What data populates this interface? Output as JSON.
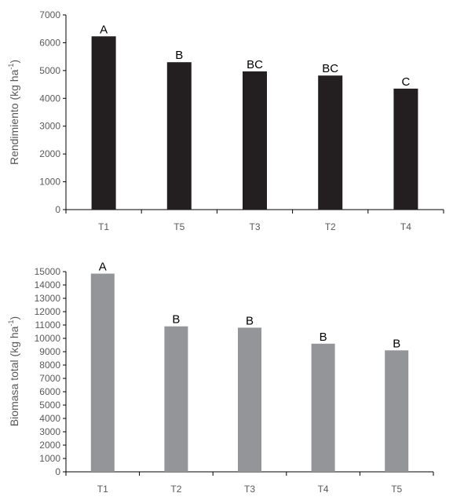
{
  "chart_data": [
    {
      "type": "bar",
      "title": "",
      "xlabel": "",
      "ylabel": "Rendimiento (kg ha",
      "ylabel_sup": "-1",
      "ylabel_end": ")",
      "categories": [
        "T1",
        "T5",
        "T3",
        "T2",
        "T4"
      ],
      "values": [
        6230,
        5300,
        4970,
        4820,
        4350
      ],
      "data_labels": [
        "A",
        "B",
        "BC",
        "BC",
        "C"
      ],
      "ylim": [
        0,
        7000
      ],
      "yticks": [
        "0",
        "1000",
        "2000",
        "3000",
        "4000",
        "5000",
        "6000",
        "7000"
      ],
      "bar_color": "#231f20",
      "grid": false,
      "legend": "none"
    },
    {
      "type": "bar",
      "title": "",
      "xlabel": "",
      "ylabel": "Biomasa total (kg ha",
      "ylabel_sup": "-1",
      "ylabel_end": ")",
      "categories": [
        "T1",
        "T2",
        "T3",
        "T4",
        "T5"
      ],
      "values": [
        14850,
        10900,
        10800,
        9600,
        9100
      ],
      "data_labels": [
        "A",
        "B",
        "B",
        "B",
        "B"
      ],
      "ylim": [
        0,
        15000
      ],
      "yticks": [
        "0",
        "1000",
        "2000",
        "3000",
        "4000",
        "5000",
        "6000",
        "7000",
        "8000",
        "9000",
        "10000",
        "11000",
        "12000",
        "13000",
        "14000",
        "15000"
      ],
      "bar_color": "#939598",
      "grid": false,
      "legend": "none"
    }
  ]
}
